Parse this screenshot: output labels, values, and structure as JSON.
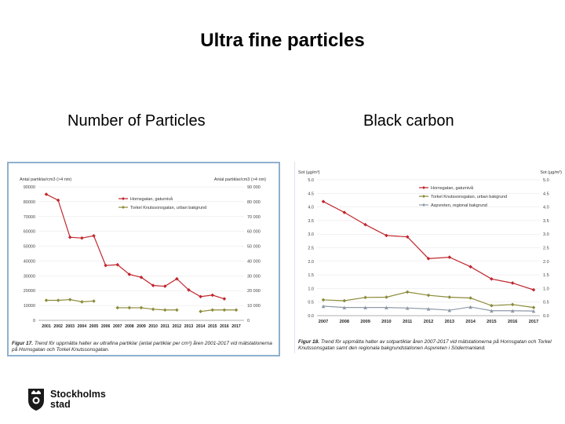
{
  "slide": {
    "title": "Ultra fine particles",
    "left_heading": "Number of Particles",
    "right_heading": "Black carbon"
  },
  "logo": {
    "line1": "Stockholms",
    "line2": "stad"
  },
  "chart_data": [
    {
      "type": "line",
      "y_left_label": "Antal partiklar/cm3 (>4 nm)",
      "y_right_label": "Antal partiklar/cm3 (>4 nm)",
      "ylim": [
        0,
        90000
      ],
      "y_ticks": [
        "0",
        "10000",
        "20000",
        "30000",
        "40000",
        "50000",
        "60000",
        "70000",
        "80000",
        "90000"
      ],
      "y_ticks_right": [
        "0",
        "10 000",
        "20 000",
        "30 000",
        "40 000",
        "50 000",
        "60 000",
        "70 000",
        "80 000",
        "90 000"
      ],
      "categories": [
        "2001",
        "2002",
        "2003",
        "2004",
        "2005",
        "2006",
        "2007",
        "2008",
        "2009",
        "2010",
        "2011",
        "2012",
        "2013",
        "2014",
        "2015",
        "2016",
        "2017"
      ],
      "series": [
        {
          "name": "Hornsgatan, gaturnivå",
          "color": "#c0262d",
          "marker": "diamond",
          "values": [
            85000,
            81000,
            56000,
            55500,
            57000,
            37000,
            37500,
            31000,
            29000,
            23500,
            23000,
            28000,
            20500,
            16000,
            17000,
            14500,
            null
          ]
        },
        {
          "name": "Torkel Knutssonsgatan, urban bakgrund",
          "color": "#8b8b3a",
          "marker": "diamond",
          "values": [
            13500,
            13500,
            14000,
            12500,
            13000,
            null,
            8500,
            8500,
            8500,
            7500,
            7000,
            7000,
            null,
            6000,
            7000,
            7000,
            7000
          ]
        }
      ],
      "caption_label": "Figur 17.",
      "caption": "Trend för uppmätta halter av ultrafina partiklar (antal partiklar per cm³) åren 2001-2017 vid mätstationerna på Hornsgatan och Torkel Knutssonsgatan."
    },
    {
      "type": "line",
      "y_left_label": "Sot (µg/m³)",
      "y_right_label": "Sot (µg/m³)",
      "ylim": [
        0,
        5
      ],
      "y_ticks": [
        "0.0",
        "0.5",
        "1.0",
        "1.5",
        "2.0",
        "2.5",
        "3.0",
        "3.5",
        "4.0",
        "4.5",
        "5.0"
      ],
      "y_ticks_right": [
        "0.0",
        "0.5",
        "1.0",
        "1.5",
        "2.0",
        "2.5",
        "3.0",
        "3.5",
        "4.0",
        "4.5",
        "5.0"
      ],
      "categories": [
        "2007",
        "2008",
        "2009",
        "2010",
        "2011",
        "2012",
        "2013",
        "2014",
        "2015",
        "2016",
        "2017"
      ],
      "series": [
        {
          "name": "Hornsgatan, gaturnivå",
          "color": "#c0262d",
          "marker": "diamond",
          "values": [
            4.2,
            3.8,
            3.35,
            2.95,
            2.9,
            2.1,
            2.15,
            1.8,
            1.35,
            1.2,
            0.95
          ]
        },
        {
          "name": "Torkel Knutssonsgatan, urban bakgrund",
          "color": "#8b8b3a",
          "marker": "diamond",
          "values": [
            0.58,
            0.55,
            0.67,
            0.68,
            0.87,
            0.75,
            0.68,
            0.65,
            0.37,
            0.41,
            0.3
          ]
        },
        {
          "name": "Aspvreten, regional bakgrund",
          "color": "#8f9aa8",
          "marker": "triangle",
          "values": [
            0.35,
            0.3,
            0.3,
            0.3,
            0.28,
            0.25,
            0.2,
            0.32,
            0.18,
            0.18,
            0.17
          ]
        }
      ],
      "caption_label": "Figur 18.",
      "caption": "Trend för uppmätta halter av sotpartiklar åren 2007-2017 vid mätstationerna på Hornsgatan och Torkel Knutssonsgatan samt den regionala bakgrundstationen Aspvreten i Södermanland."
    }
  ]
}
